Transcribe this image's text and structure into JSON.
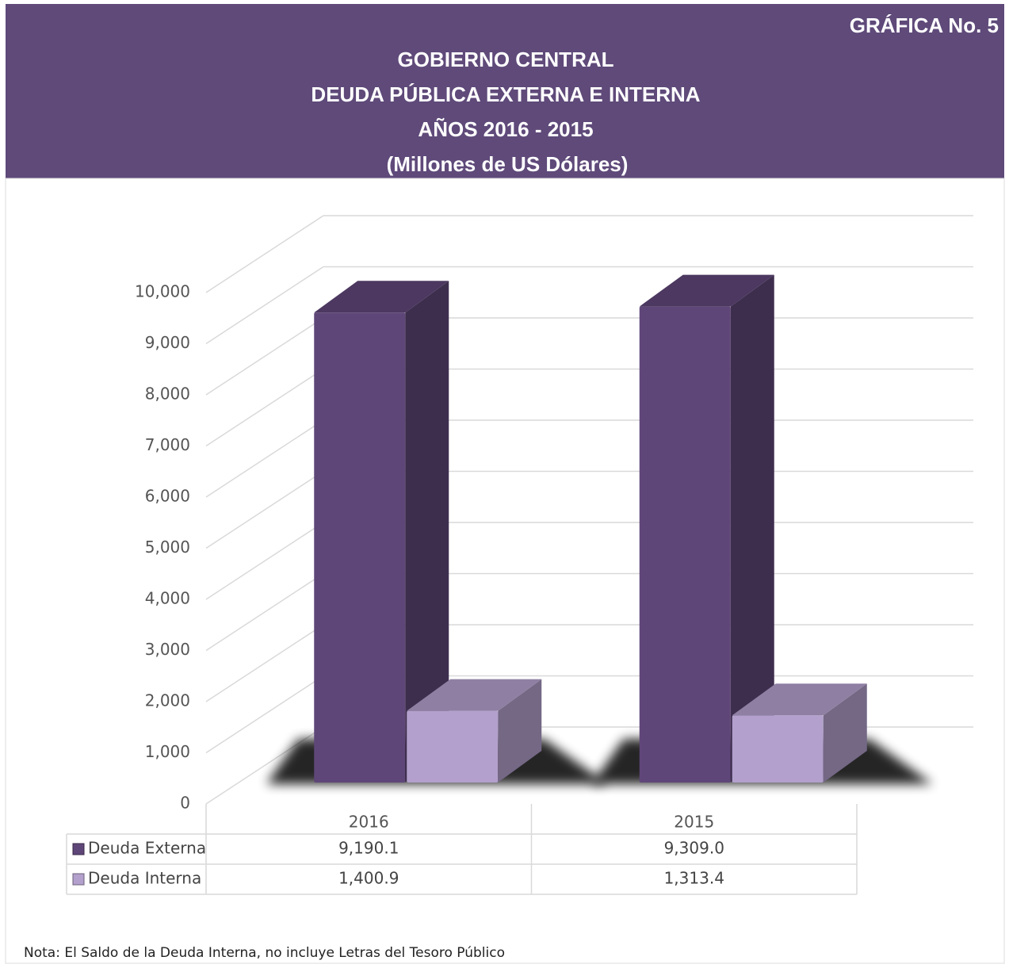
{
  "chart_data": {
    "type": "bar3d",
    "label": "GRÁFICA No. 5",
    "title": [
      "GOBIERNO CENTRAL",
      "DEUDA PÚBLICA EXTERNA E INTERNA",
      "AÑOS 2016 - 2015"
    ],
    "subtitle": "(Millones de US Dólares)",
    "categories": [
      "2016",
      "2015"
    ],
    "series": [
      {
        "name": "Deuda Externa",
        "color": "#5f4678",
        "values": [
          9190.1,
          9309.0
        ],
        "value_labels": [
          "9,190.1",
          "9,309.0"
        ]
      },
      {
        "name": "Deuda Interna",
        "color": "#b3a0cc",
        "values": [
          1400.9,
          1313.4
        ],
        "value_labels": [
          "1,400.9",
          "1,313.4"
        ]
      }
    ],
    "ylim": [
      0,
      10000
    ],
    "yticks": [
      0,
      {
        "value": 1000,
        "label": "1,000"
      },
      {
        "value": 2000,
        "label": "2,000"
      },
      {
        "value": 3000,
        "label": "3,000"
      },
      {
        "value": 4000,
        "label": "4,000"
      },
      {
        "value": 5000,
        "label": "5,000"
      },
      {
        "value": 6000,
        "label": "6,000"
      },
      {
        "value": 7000,
        "label": "7,000"
      },
      {
        "value": 8000,
        "label": "8,000"
      },
      {
        "value": 9000,
        "label": "9,000"
      },
      {
        "value": 10000,
        "label": "10,000"
      }
    ],
    "grid": true,
    "note": "Nota: El Saldo de la Deuda Interna, no incluye Letras del Tesoro Público"
  }
}
